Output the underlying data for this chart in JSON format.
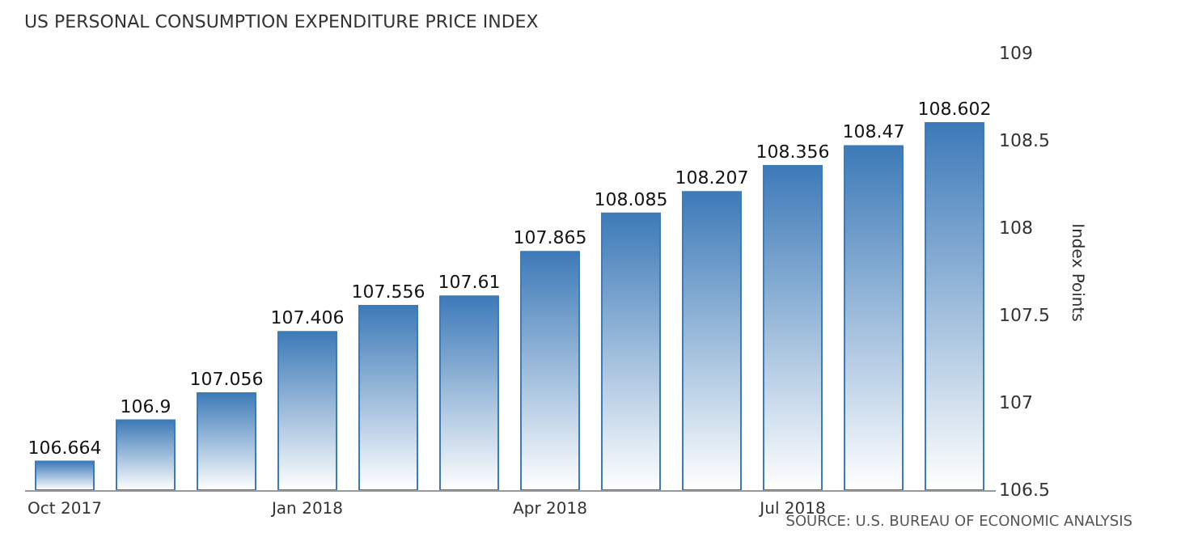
{
  "chart_data": {
    "type": "bar",
    "title": "US PERSONAL CONSUMPTION EXPENDITURE PRICE INDEX",
    "ylabel": "Index Points",
    "categories": [
      "Oct 2017",
      null,
      null,
      "Jan 2018",
      null,
      null,
      "Apr 2018",
      null,
      null,
      "Jul 2018",
      null,
      null
    ],
    "values": [
      106.664,
      106.9,
      107.056,
      107.406,
      107.556,
      107.61,
      107.865,
      108.085,
      108.207,
      108.356,
      108.47,
      108.602
    ],
    "color": "#3d7ab8",
    "ylim": [
      106.5,
      109
    ],
    "yticks": [
      106.5,
      107,
      107.5,
      108,
      108.5,
      109
    ],
    "data_labels": true,
    "grid": false,
    "annotations": [
      "SOURCE: U.S. BUREAU OF ECONOMIC ANALYSIS"
    ]
  }
}
